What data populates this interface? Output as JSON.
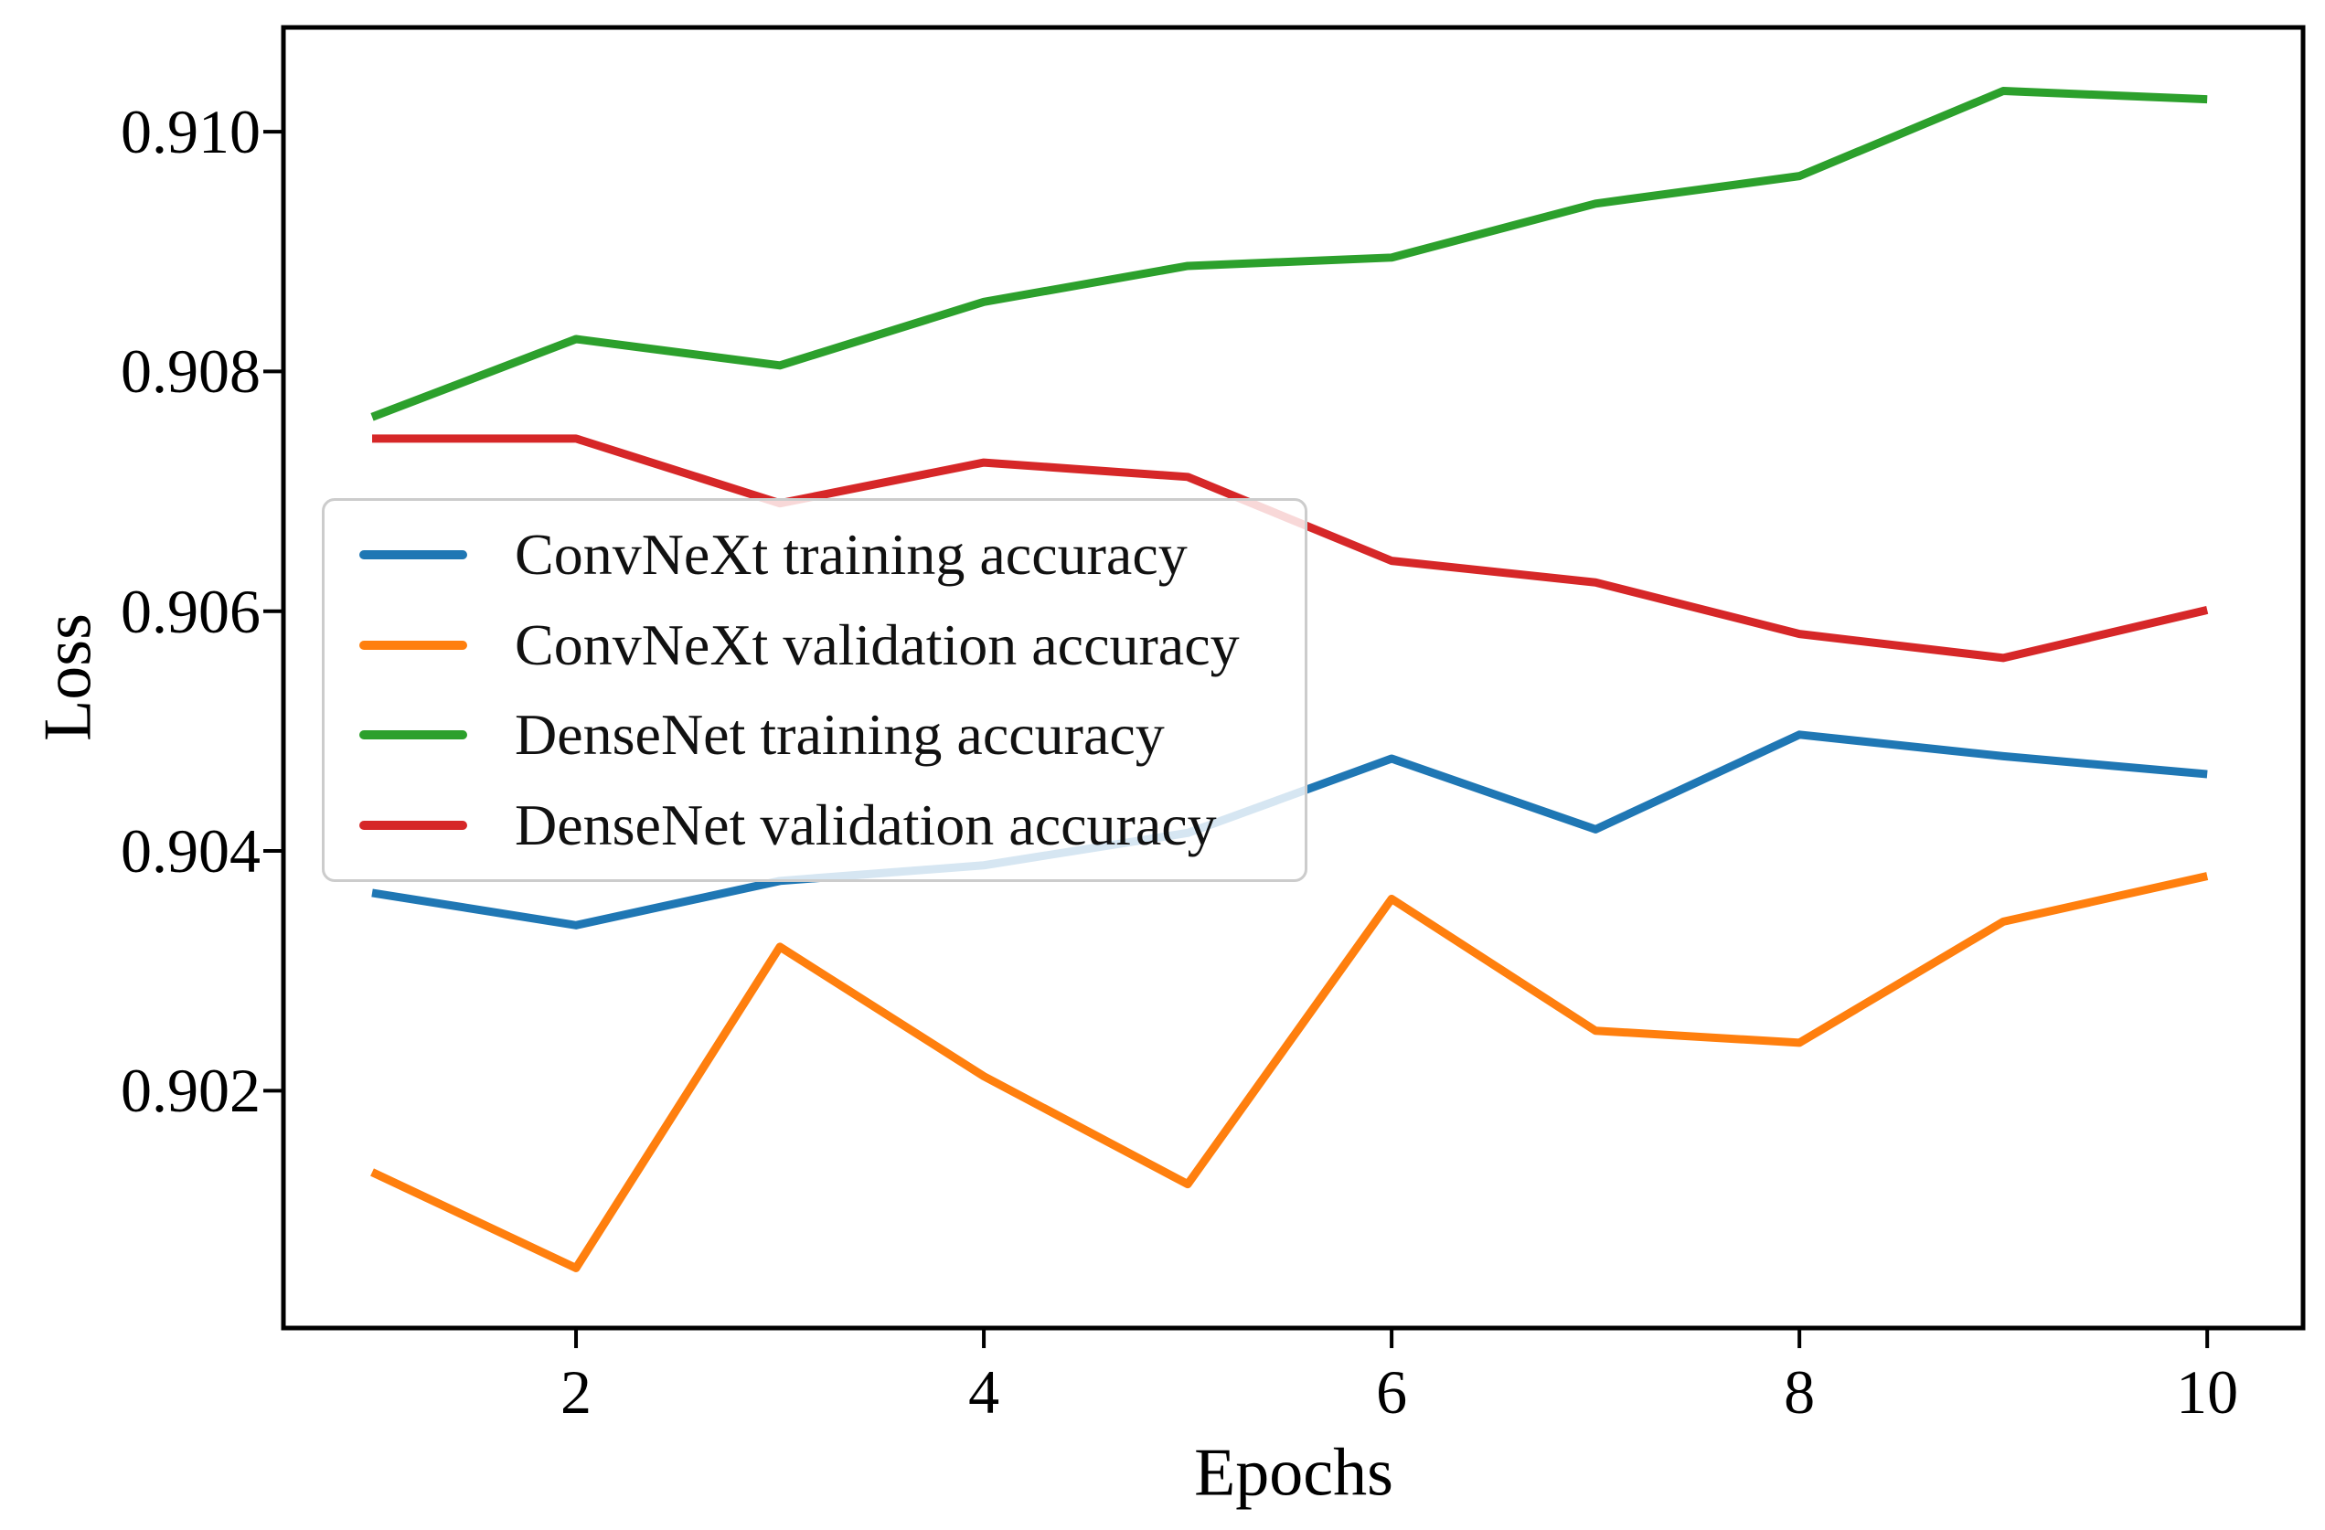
{
  "axes": {
    "x_label": "Epochs",
    "y_label": "Loss"
  },
  "chart_data": {
    "type": "line",
    "title": "",
    "xlabel": "Epochs",
    "ylabel": "Loss",
    "x": [
      1,
      2,
      3,
      4,
      5,
      6,
      7,
      8,
      9,
      10
    ],
    "xticks": [
      "2",
      "4",
      "6",
      "8",
      "10"
    ],
    "xtick_values": [
      2,
      4,
      6,
      8,
      10
    ],
    "yticks": [
      "0.902",
      "0.904",
      "0.906",
      "0.908",
      "0.910"
    ],
    "ytick_values": [
      0.902,
      0.904,
      0.906,
      0.908,
      0.91
    ],
    "xlim": [
      0.565,
      10.47
    ],
    "ylim": [
      0.90002,
      0.91087
    ],
    "grid": false,
    "legend_position": "center-left",
    "frame_color": "#000000",
    "series": [
      {
        "name": "ConvNeXt training accuracy",
        "color": "#1f77b4",
        "values": [
          0.90365,
          0.90338,
          0.90375,
          0.90388,
          0.90415,
          0.90477,
          0.90418,
          0.90497,
          0.90479,
          0.90464
        ]
      },
      {
        "name": "ConvNeXt validation accuracy",
        "color": "#ff7f0e",
        "values": [
          0.90132,
          0.90052,
          0.9032,
          0.90212,
          0.90122,
          0.9036,
          0.9025,
          0.9024,
          0.90341,
          0.90379
        ]
      },
      {
        "name": "DenseNet training accuracy",
        "color": "#2ca02c",
        "values": [
          0.90762,
          0.90827,
          0.90805,
          0.90858,
          0.90888,
          0.90895,
          0.9094,
          0.90963,
          0.91034,
          0.91027
        ]
      },
      {
        "name": "DenseNet validation accuracy",
        "color": "#d62728",
        "values": [
          0.90744,
          0.90744,
          0.9069,
          0.90724,
          0.90712,
          0.90642,
          0.90624,
          0.90581,
          0.90561,
          0.90601
        ]
      }
    ]
  }
}
